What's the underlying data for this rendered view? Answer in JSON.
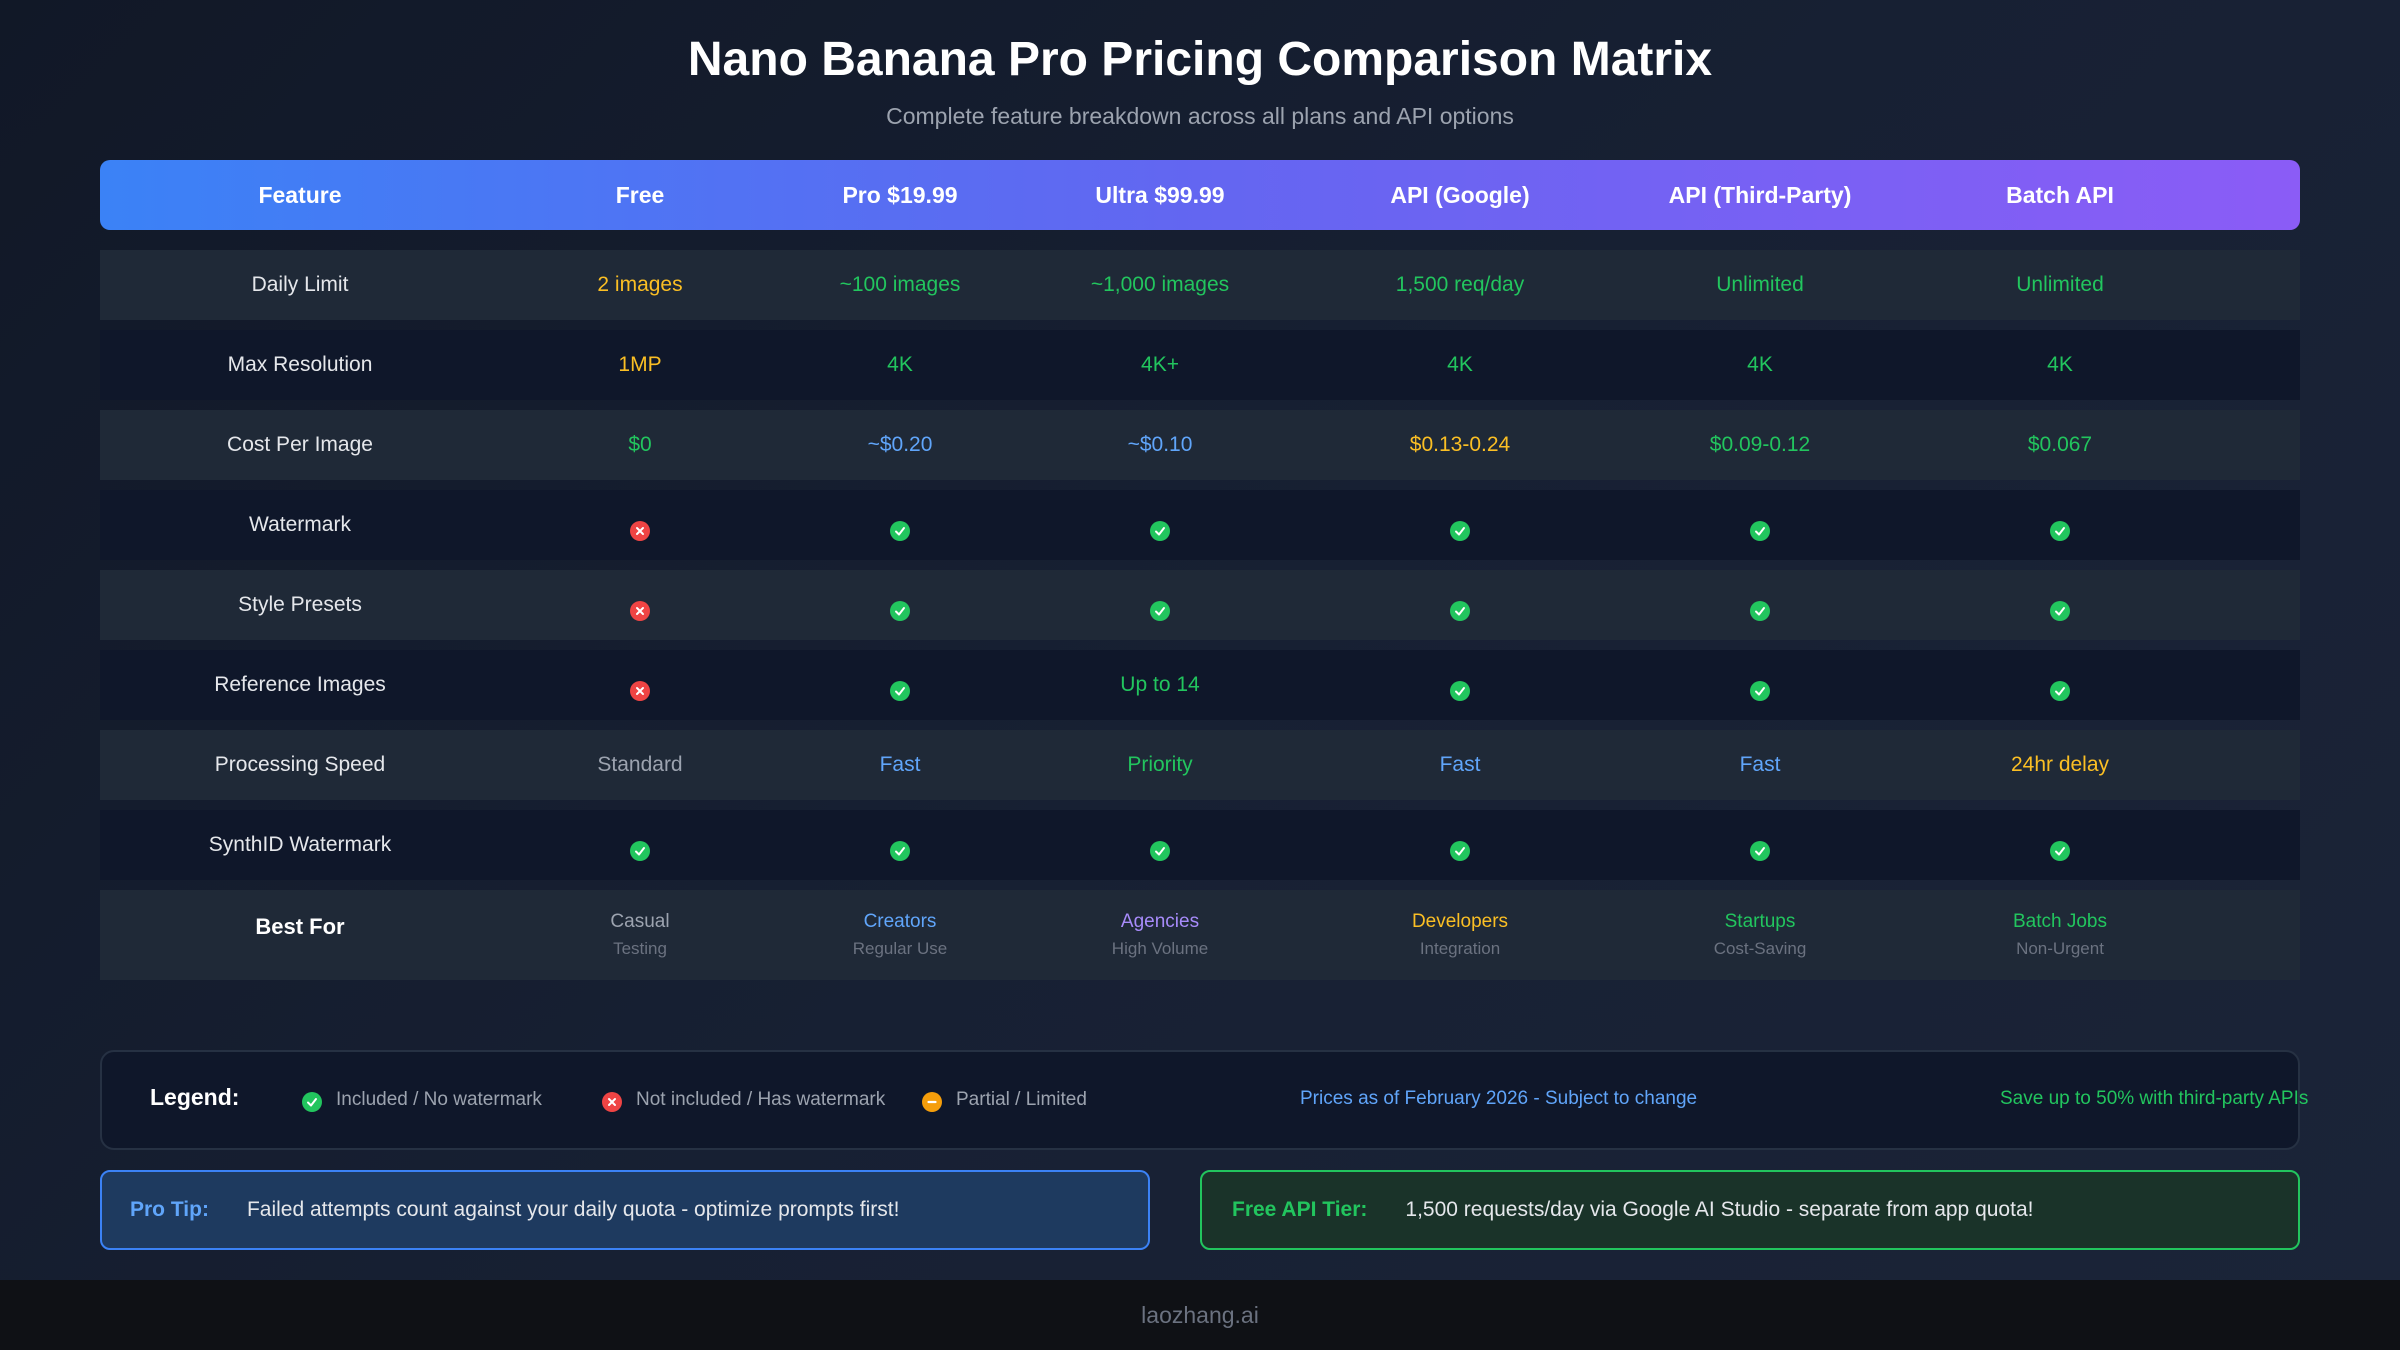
{
  "title": "Nano Banana Pro Pricing Comparison Matrix",
  "subtitle": "Complete feature breakdown across all plans and API options",
  "colors": {
    "header_gradient": [
      "#3b82f6",
      "#6366f1",
      "#8b5cf6"
    ],
    "green": "#22c55e",
    "yellow": "#fbbf24",
    "blue": "#60a5fa",
    "red": "#ef4444",
    "orange": "#f59e0b",
    "purple": "#a78bfa",
    "gray": "#9ca3af"
  },
  "table": {
    "columns": [
      "Feature",
      "Free",
      "Pro $19.99",
      "Ultra $99.99",
      "API (Google)",
      "API (Third-Party)",
      "Batch API"
    ],
    "rows": [
      {
        "feature": "Daily Limit",
        "cells": [
          {
            "type": "text",
            "value": "2 images",
            "color": "yellow"
          },
          {
            "type": "text",
            "value": "~100 images",
            "color": "green"
          },
          {
            "type": "text",
            "value": "~1,000 images",
            "color": "green"
          },
          {
            "type": "text",
            "value": "1,500 req/day",
            "color": "green"
          },
          {
            "type": "text",
            "value": "Unlimited",
            "color": "green"
          },
          {
            "type": "text",
            "value": "Unlimited",
            "color": "green"
          }
        ]
      },
      {
        "feature": "Max Resolution",
        "cells": [
          {
            "type": "text",
            "value": "1MP",
            "color": "yellow"
          },
          {
            "type": "text",
            "value": "4K",
            "color": "green"
          },
          {
            "type": "text",
            "value": "4K+",
            "color": "green"
          },
          {
            "type": "text",
            "value": "4K",
            "color": "green"
          },
          {
            "type": "text",
            "value": "4K",
            "color": "green"
          },
          {
            "type": "text",
            "value": "4K",
            "color": "green"
          }
        ]
      },
      {
        "feature": "Cost Per Image",
        "cells": [
          {
            "type": "text",
            "value": "$0",
            "color": "green"
          },
          {
            "type": "text",
            "value": "~$0.20",
            "color": "blue"
          },
          {
            "type": "text",
            "value": "~$0.10",
            "color": "blue"
          },
          {
            "type": "text",
            "value": "$0.13-0.24",
            "color": "yellow"
          },
          {
            "type": "text",
            "value": "$0.09-0.12",
            "color": "green"
          },
          {
            "type": "text",
            "value": "$0.067",
            "color": "green"
          }
        ]
      },
      {
        "feature": "Watermark",
        "cells": [
          {
            "type": "icon",
            "value": "cross"
          },
          {
            "type": "icon",
            "value": "check"
          },
          {
            "type": "icon",
            "value": "check"
          },
          {
            "type": "icon",
            "value": "check"
          },
          {
            "type": "icon",
            "value": "check"
          },
          {
            "type": "icon",
            "value": "check"
          }
        ]
      },
      {
        "feature": "Style Presets",
        "cells": [
          {
            "type": "icon",
            "value": "cross"
          },
          {
            "type": "icon",
            "value": "check"
          },
          {
            "type": "icon",
            "value": "check"
          },
          {
            "type": "icon",
            "value": "check"
          },
          {
            "type": "icon",
            "value": "check"
          },
          {
            "type": "icon",
            "value": "check"
          }
        ]
      },
      {
        "feature": "Reference Images",
        "cells": [
          {
            "type": "icon",
            "value": "cross"
          },
          {
            "type": "icon",
            "value": "check"
          },
          {
            "type": "text",
            "value": "Up to 14",
            "color": "green"
          },
          {
            "type": "icon",
            "value": "check"
          },
          {
            "type": "icon",
            "value": "check"
          },
          {
            "type": "icon",
            "value": "check"
          }
        ]
      },
      {
        "feature": "Processing Speed",
        "cells": [
          {
            "type": "text",
            "value": "Standard",
            "color": "gray"
          },
          {
            "type": "text",
            "value": "Fast",
            "color": "blue"
          },
          {
            "type": "text",
            "value": "Priority",
            "color": "green"
          },
          {
            "type": "text",
            "value": "Fast",
            "color": "blue"
          },
          {
            "type": "text",
            "value": "Fast",
            "color": "blue"
          },
          {
            "type": "text",
            "value": "24hr delay",
            "color": "yellow"
          }
        ]
      },
      {
        "feature": "SynthID Watermark",
        "cells": [
          {
            "type": "icon",
            "value": "check"
          },
          {
            "type": "icon",
            "value": "check"
          },
          {
            "type": "icon",
            "value": "check"
          },
          {
            "type": "icon",
            "value": "check"
          },
          {
            "type": "icon",
            "value": "check"
          },
          {
            "type": "icon",
            "value": "check"
          }
        ]
      },
      {
        "feature": "Best For",
        "bold": true,
        "cells": [
          {
            "type": "text",
            "value": "Casual",
            "sub": "Testing",
            "color": "gray"
          },
          {
            "type": "text",
            "value": "Creators",
            "sub": "Regular Use",
            "color": "blue"
          },
          {
            "type": "text",
            "value": "Agencies",
            "sub": "High Volume",
            "color": "purple"
          },
          {
            "type": "text",
            "value": "Developers",
            "sub": "Integration",
            "color": "yellow"
          },
          {
            "type": "text",
            "value": "Startups",
            "sub": "Cost-Saving",
            "color": "green"
          },
          {
            "type": "text",
            "value": "Batch Jobs",
            "sub": "Non-Urgent",
            "color": "green"
          }
        ]
      }
    ]
  },
  "legend": {
    "title": "Legend:",
    "items": [
      {
        "icon": "check",
        "label": "Included / No watermark"
      },
      {
        "icon": "cross",
        "label": "Not included / Has watermark"
      },
      {
        "icon": "partial",
        "label": "Partial / Limited"
      }
    ],
    "note_prices": "Prices as of February 2026 - Subject to change",
    "note_savings": "Save up to 50% with third-party APIs"
  },
  "tips": {
    "pro_tip": {
      "label": "Pro Tip:",
      "text": "Failed attempts count against your daily quota - optimize prompts first!"
    },
    "free_api": {
      "label": "Free API Tier:",
      "text": "1,500 requests/day via Google AI Studio - separate from app quota!"
    }
  },
  "footer": {
    "brand": "laozhang.ai"
  }
}
